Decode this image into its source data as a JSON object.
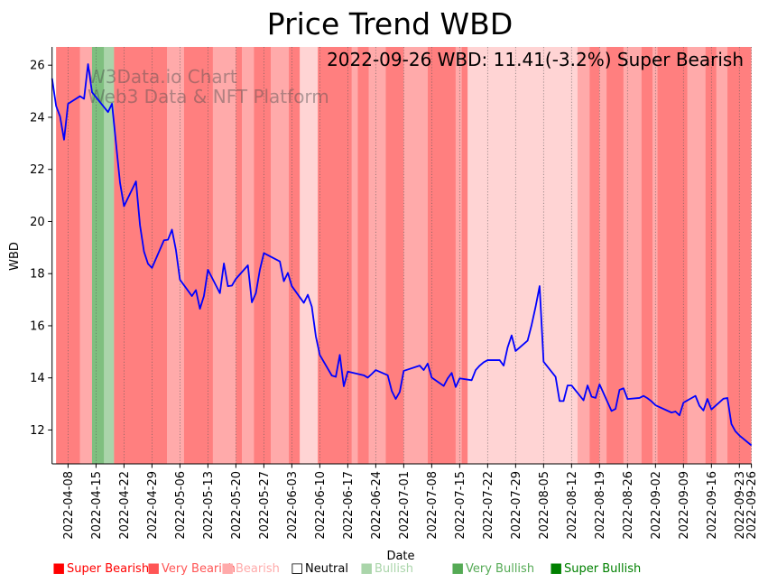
{
  "chart_data": {
    "type": "line",
    "title": "Price Trend WBD",
    "annotation": "2022-09-26 WBD: 11.41(-3.2%) Super Bearish",
    "watermark": [
      "W3Data.io Chart",
      "Web3 Data & NFT Platform"
    ],
    "xlabel": "Date",
    "ylabel": "WBD",
    "xlim": [
      "2022-04-04",
      "2022-09-26"
    ],
    "ylim": [
      10.7,
      26.7
    ],
    "yticks": [
      "12",
      "14",
      "16",
      "18",
      "20",
      "22",
      "24",
      "26"
    ],
    "xticks": [
      "2022-04-08",
      "2022-04-15",
      "2022-04-22",
      "2022-04-29",
      "2022-05-06",
      "2022-05-13",
      "2022-05-20",
      "2022-05-27",
      "2022-06-03",
      "2022-06-10",
      "2022-06-17",
      "2022-06-24",
      "2022-07-01",
      "2022-07-08",
      "2022-07-15",
      "2022-07-22",
      "2022-07-29",
      "2022-08-05",
      "2022-08-12",
      "2022-08-19",
      "2022-08-26",
      "2022-09-02",
      "2022-09-09",
      "2022-09-16",
      "2022-09-23",
      "2022-09-26"
    ],
    "grid": "vertical dotted at x ticks",
    "series": [
      {
        "name": "WBD",
        "color": "#0000ff",
        "x": [
          "2022-04-04",
          "2022-04-05",
          "2022-04-06",
          "2022-04-07",
          "2022-04-08",
          "2022-04-11",
          "2022-04-12",
          "2022-04-13",
          "2022-04-14",
          "2022-04-18",
          "2022-04-19",
          "2022-04-20",
          "2022-04-21",
          "2022-04-22",
          "2022-04-25",
          "2022-04-26",
          "2022-04-27",
          "2022-04-28",
          "2022-04-29",
          "2022-05-02",
          "2022-05-03",
          "2022-05-04",
          "2022-05-05",
          "2022-05-06",
          "2022-05-09",
          "2022-05-10",
          "2022-05-11",
          "2022-05-12",
          "2022-05-13",
          "2022-05-16",
          "2022-05-17",
          "2022-05-18",
          "2022-05-19",
          "2022-05-20",
          "2022-05-23",
          "2022-05-24",
          "2022-05-25",
          "2022-05-26",
          "2022-05-27",
          "2022-05-31",
          "2022-06-01",
          "2022-06-02",
          "2022-06-03",
          "2022-06-06",
          "2022-06-07",
          "2022-06-08",
          "2022-06-09",
          "2022-06-10",
          "2022-06-13",
          "2022-06-14",
          "2022-06-15",
          "2022-06-16",
          "2022-06-17",
          "2022-06-21",
          "2022-06-22",
          "2022-06-23",
          "2022-06-24",
          "2022-06-27",
          "2022-06-28",
          "2022-06-29",
          "2022-06-30",
          "2022-07-01",
          "2022-07-05",
          "2022-07-06",
          "2022-07-07",
          "2022-07-08",
          "2022-07-11",
          "2022-07-12",
          "2022-07-13",
          "2022-07-14",
          "2022-07-15",
          "2022-07-18",
          "2022-07-19",
          "2022-07-20",
          "2022-07-21",
          "2022-07-22",
          "2022-07-25",
          "2022-07-26",
          "2022-07-27",
          "2022-07-28",
          "2022-07-29",
          "2022-08-01",
          "2022-08-02",
          "2022-08-03",
          "2022-08-04",
          "2022-08-05",
          "2022-08-08",
          "2022-08-09",
          "2022-08-10",
          "2022-08-11",
          "2022-08-12",
          "2022-08-15",
          "2022-08-16",
          "2022-08-17",
          "2022-08-18",
          "2022-08-19",
          "2022-08-22",
          "2022-08-23",
          "2022-08-24",
          "2022-08-25",
          "2022-08-26",
          "2022-08-29",
          "2022-08-30",
          "2022-08-31",
          "2022-09-01",
          "2022-09-02",
          "2022-09-06",
          "2022-09-07",
          "2022-09-08",
          "2022-09-09",
          "2022-09-12",
          "2022-09-13",
          "2022-09-14",
          "2022-09-15",
          "2022-09-16",
          "2022-09-19",
          "2022-09-20",
          "2022-09-21",
          "2022-09-22",
          "2022-09-23",
          "2022-09-26"
        ],
        "y": [
          25.49,
          24.44,
          24.03,
          23.14,
          24.52,
          24.81,
          24.71,
          26.04,
          24.96,
          24.2,
          24.52,
          23.0,
          21.49,
          20.59,
          21.54,
          19.86,
          18.85,
          18.38,
          18.22,
          19.28,
          19.3,
          19.69,
          18.9,
          17.77,
          17.14,
          17.37,
          16.65,
          17.14,
          18.15,
          17.25,
          18.39,
          17.52,
          17.54,
          17.8,
          18.32,
          16.9,
          17.25,
          18.15,
          18.79,
          18.47,
          17.71,
          18.03,
          17.52,
          16.88,
          17.19,
          16.73,
          15.6,
          14.88,
          14.09,
          14.04,
          14.88,
          13.68,
          14.24,
          14.1,
          14.01,
          14.15,
          14.3,
          14.1,
          13.5,
          13.19,
          13.46,
          14.27,
          14.47,
          14.3,
          14.55,
          14.01,
          13.69,
          13.98,
          14.19,
          13.65,
          13.98,
          13.91,
          14.3,
          14.47,
          14.6,
          14.68,
          14.68,
          14.47,
          15.17,
          15.63,
          15.03,
          15.43,
          16.03,
          16.73,
          17.52,
          14.62,
          14.04,
          13.11,
          13.11,
          13.71,
          13.71,
          13.14,
          13.71,
          13.28,
          13.23,
          13.75,
          12.73,
          12.81,
          13.54,
          13.6,
          13.19,
          13.23,
          13.31,
          13.22,
          13.1,
          12.95,
          12.67,
          12.71,
          12.56,
          13.05,
          13.31,
          12.93,
          12.75,
          13.19,
          12.79,
          13.2,
          13.23,
          12.23,
          11.95,
          11.79,
          11.41
        ]
      }
    ],
    "sentiment_colors": {
      "Super Bearish": "#ff0000",
      "Very Bearish": "#ff5555",
      "Bearish": "#ffaaaa",
      "Neutral": "#ffffff",
      "Bullish": "#aad5aa",
      "Very Bullish": "#55aa55",
      "Super Bullish": "#008000"
    },
    "sentiment_bands": [
      {
        "start": "2022-04-05",
        "end": "2022-04-11",
        "sentiment": "Super Bearish"
      },
      {
        "start": "2022-04-11",
        "end": "2022-04-14",
        "sentiment": "Very Bearish"
      },
      {
        "start": "2022-04-14",
        "end": "2022-04-17",
        "sentiment": "Super Bullish"
      },
      {
        "start": "2022-04-17",
        "end": "2022-04-19T12:00",
        "sentiment": "Very Bullish"
      },
      {
        "start": "2022-04-19T12:00",
        "end": "2022-05-02T18:00",
        "sentiment": "Super Bearish"
      },
      {
        "start": "2022-05-02T18:00",
        "end": "2022-05-07",
        "sentiment": "Very Bearish"
      },
      {
        "start": "2022-05-07",
        "end": "2022-05-14T06:00",
        "sentiment": "Super Bearish"
      },
      {
        "start": "2022-05-14T06:00",
        "end": "2022-05-20",
        "sentiment": "Very Bearish"
      },
      {
        "start": "2022-05-20",
        "end": "2022-05-21T12:00",
        "sentiment": "Super Bearish"
      },
      {
        "start": "2022-05-21T12:00",
        "end": "2022-05-24T12:00",
        "sentiment": "Very Bearish"
      },
      {
        "start": "2022-05-24T12:00",
        "end": "2022-05-28T18:00",
        "sentiment": "Super Bearish"
      },
      {
        "start": "2022-05-28T18:00",
        "end": "2022-06-02T06:00",
        "sentiment": "Very Bearish"
      },
      {
        "start": "2022-06-02T06:00",
        "end": "2022-06-05",
        "sentiment": "Super Bearish"
      },
      {
        "start": "2022-06-05",
        "end": "2022-06-09T12:00",
        "sentiment": "Bearish"
      },
      {
        "start": "2022-06-09T12:00",
        "end": "2022-06-18",
        "sentiment": "Super Bearish"
      },
      {
        "start": "2022-06-18",
        "end": "2022-06-19T12:00",
        "sentiment": "Very Bearish"
      },
      {
        "start": "2022-06-19T12:00",
        "end": "2022-06-22T06:00",
        "sentiment": "Super Bearish"
      },
      {
        "start": "2022-06-22T06:00",
        "end": "2022-06-26T12:00",
        "sentiment": "Very Bearish"
      },
      {
        "start": "2022-06-26T12:00",
        "end": "2022-07-01",
        "sentiment": "Super Bearish"
      },
      {
        "start": "2022-07-01",
        "end": "2022-07-07",
        "sentiment": "Very Bearish"
      },
      {
        "start": "2022-07-07",
        "end": "2022-07-14",
        "sentiment": "Super Bearish"
      },
      {
        "start": "2022-07-14",
        "end": "2022-07-15T12:00",
        "sentiment": "Very Bearish"
      },
      {
        "start": "2022-07-15T12:00",
        "end": "2022-07-17",
        "sentiment": "Super Bearish"
      },
      {
        "start": "2022-07-17",
        "end": "2022-08-13T12:00",
        "sentiment": "Bearish"
      },
      {
        "start": "2022-08-13T12:00",
        "end": "2022-08-16T12:00",
        "sentiment": "Very Bearish"
      },
      {
        "start": "2022-08-16T12:00",
        "end": "2022-08-19",
        "sentiment": "Super Bearish"
      },
      {
        "start": "2022-08-19",
        "end": "2022-08-20T18:00",
        "sentiment": "Very Bearish"
      },
      {
        "start": "2022-08-20T18:00",
        "end": "2022-08-25",
        "sentiment": "Super Bearish"
      },
      {
        "start": "2022-08-25",
        "end": "2022-08-29T12:00",
        "sentiment": "Very Bearish"
      },
      {
        "start": "2022-08-29T12:00",
        "end": "2022-09-01T06:00",
        "sentiment": "Super Bearish"
      },
      {
        "start": "2022-09-01T06:00",
        "end": "2022-09-02T12:00",
        "sentiment": "Very Bearish"
      },
      {
        "start": "2022-09-02T12:00",
        "end": "2022-09-10",
        "sentiment": "Super Bearish"
      },
      {
        "start": "2022-09-10",
        "end": "2022-09-14T12:00",
        "sentiment": "Very Bearish"
      },
      {
        "start": "2022-09-14T12:00",
        "end": "2022-09-17T06:00",
        "sentiment": "Super Bearish"
      },
      {
        "start": "2022-09-17T06:00",
        "end": "2022-09-20",
        "sentiment": "Very Bearish"
      },
      {
        "start": "2022-09-20",
        "end": "2022-09-26",
        "sentiment": "Super Bearish"
      }
    ],
    "band_opacity": 0.5,
    "legend": {
      "placement": "bottom",
      "items": [
        {
          "label": "Super Bearish",
          "marker": "■",
          "color": "#ff0000"
        },
        {
          "label": "Very Bearish",
          "marker": "■",
          "color": "#ff5555"
        },
        {
          "label": "Bearish",
          "marker": "■",
          "color": "#ffaaaa"
        },
        {
          "label": "Neutral",
          "marker": "□",
          "color": "#000000"
        },
        {
          "label": "Bullish",
          "marker": "■",
          "color": "#aad5aa"
        },
        {
          "label": "Very Bullish",
          "marker": "■",
          "color": "#55aa55"
        },
        {
          "label": "Super Bullish",
          "marker": "■",
          "color": "#008000"
        }
      ]
    }
  }
}
